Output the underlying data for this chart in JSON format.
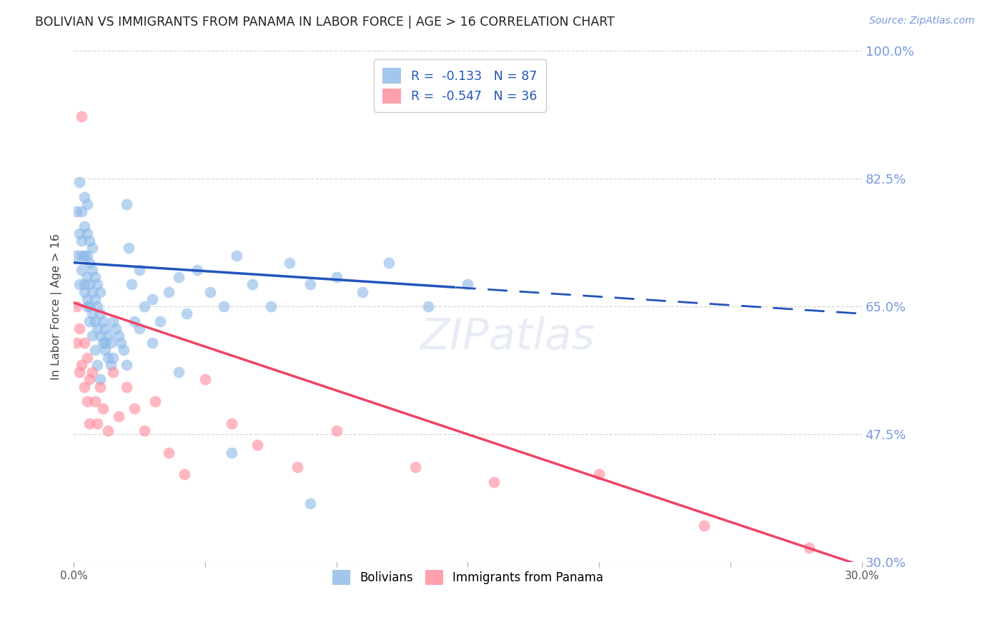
{
  "title": "BOLIVIAN VS IMMIGRANTS FROM PANAMA IN LABOR FORCE | AGE > 16 CORRELATION CHART",
  "source": "Source: ZipAtlas.com",
  "ylabel": "In Labor Force | Age > 16",
  "bolivians_R": -0.133,
  "bolivians_N": 87,
  "panama_R": -0.547,
  "panama_N": 36,
  "xmin": 0.0,
  "xmax": 0.3,
  "ymin": 0.3,
  "ymax": 1.0,
  "yticks": [
    0.3,
    0.475,
    0.65,
    0.825,
    1.0
  ],
  "ytick_labels": [
    "30.0%",
    "47.5%",
    "65.0%",
    "82.5%",
    "100.0%"
  ],
  "blue_color": "#8BB8E8",
  "pink_color": "#FF8899",
  "blue_line_color": "#2255BB",
  "pink_line_color": "#EE4466",
  "blue_line_intercept": 0.71,
  "blue_line_slope": -0.233,
  "pink_line_intercept": 0.655,
  "pink_line_slope": -1.2,
  "blue_dash_split": 0.145,
  "watermark": "ZIPatlas",
  "legend_label_blue": "Bolivians",
  "legend_label_pink": "Immigrants from Panama",
  "background_color": "#FFFFFF",
  "grid_color": "#CCCCCC",
  "right_label_color": "#7799DD",
  "title_color": "#222222",
  "bolivians_x": [
    0.001,
    0.001,
    0.002,
    0.002,
    0.003,
    0.003,
    0.003,
    0.004,
    0.004,
    0.004,
    0.004,
    0.005,
    0.005,
    0.005,
    0.005,
    0.005,
    0.006,
    0.006,
    0.006,
    0.006,
    0.007,
    0.007,
    0.007,
    0.007,
    0.008,
    0.008,
    0.008,
    0.009,
    0.009,
    0.009,
    0.01,
    0.01,
    0.01,
    0.011,
    0.011,
    0.012,
    0.012,
    0.013,
    0.013,
    0.014,
    0.014,
    0.015,
    0.016,
    0.017,
    0.018,
    0.019,
    0.02,
    0.021,
    0.022,
    0.023,
    0.025,
    0.027,
    0.03,
    0.033,
    0.036,
    0.04,
    0.043,
    0.047,
    0.052,
    0.057,
    0.062,
    0.068,
    0.075,
    0.082,
    0.09,
    0.1,
    0.11,
    0.12,
    0.135,
    0.15,
    0.002,
    0.003,
    0.004,
    0.005,
    0.006,
    0.007,
    0.008,
    0.009,
    0.01,
    0.012,
    0.015,
    0.02,
    0.025,
    0.03,
    0.04,
    0.06,
    0.09
  ],
  "bolivians_y": [
    0.72,
    0.78,
    0.75,
    0.82,
    0.7,
    0.74,
    0.78,
    0.68,
    0.72,
    0.76,
    0.8,
    0.66,
    0.69,
    0.72,
    0.75,
    0.79,
    0.65,
    0.68,
    0.71,
    0.74,
    0.64,
    0.67,
    0.7,
    0.73,
    0.63,
    0.66,
    0.69,
    0.62,
    0.65,
    0.68,
    0.61,
    0.64,
    0.67,
    0.6,
    0.63,
    0.59,
    0.62,
    0.58,
    0.61,
    0.57,
    0.6,
    0.63,
    0.62,
    0.61,
    0.6,
    0.59,
    0.79,
    0.73,
    0.68,
    0.63,
    0.7,
    0.65,
    0.66,
    0.63,
    0.67,
    0.69,
    0.64,
    0.7,
    0.67,
    0.65,
    0.72,
    0.68,
    0.65,
    0.71,
    0.68,
    0.69,
    0.67,
    0.71,
    0.65,
    0.68,
    0.68,
    0.72,
    0.67,
    0.65,
    0.63,
    0.61,
    0.59,
    0.57,
    0.55,
    0.6,
    0.58,
    0.57,
    0.62,
    0.6,
    0.56,
    0.45,
    0.38
  ],
  "panama_x": [
    0.001,
    0.001,
    0.002,
    0.002,
    0.003,
    0.003,
    0.004,
    0.004,
    0.005,
    0.005,
    0.006,
    0.006,
    0.007,
    0.008,
    0.009,
    0.01,
    0.011,
    0.013,
    0.015,
    0.017,
    0.02,
    0.023,
    0.027,
    0.031,
    0.036,
    0.042,
    0.05,
    0.06,
    0.07,
    0.085,
    0.1,
    0.13,
    0.16,
    0.2,
    0.24,
    0.28
  ],
  "panama_y": [
    0.65,
    0.6,
    0.62,
    0.56,
    0.91,
    0.57,
    0.6,
    0.54,
    0.58,
    0.52,
    0.55,
    0.49,
    0.56,
    0.52,
    0.49,
    0.54,
    0.51,
    0.48,
    0.56,
    0.5,
    0.54,
    0.51,
    0.48,
    0.52,
    0.45,
    0.42,
    0.55,
    0.49,
    0.46,
    0.43,
    0.48,
    0.43,
    0.41,
    0.42,
    0.35,
    0.32
  ]
}
